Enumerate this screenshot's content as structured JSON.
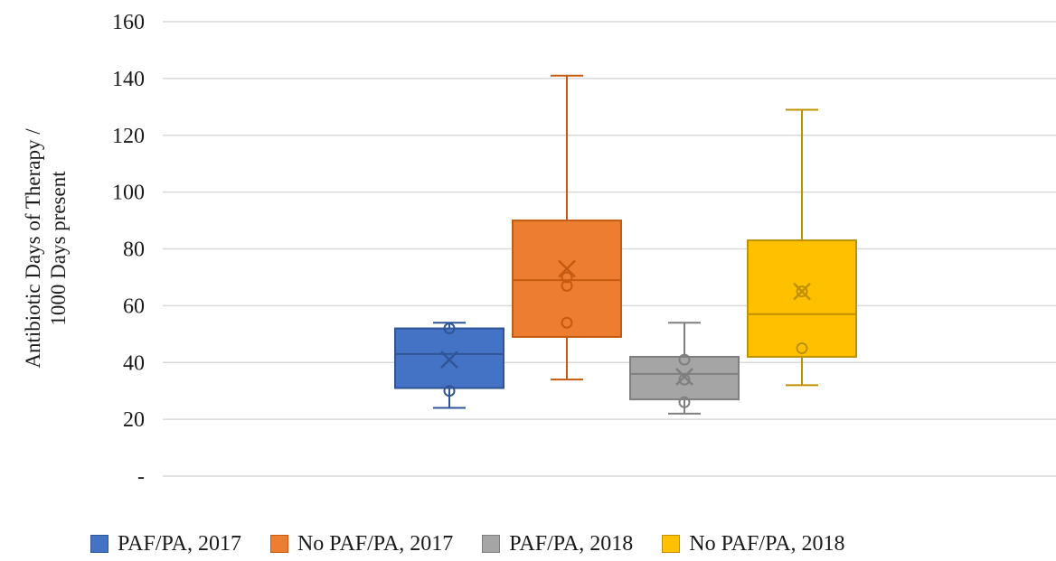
{
  "chart_data": {
    "type": "box",
    "ylabel_lines": [
      "Antibiotic Days of Therapy /",
      "1000 Days present"
    ],
    "xlabel": "",
    "ylim": [
      0,
      160
    ],
    "yticks": [
      0,
      20,
      40,
      60,
      80,
      100,
      120,
      140,
      160
    ],
    "ytick_labels": [
      "-",
      "20",
      "40",
      "60",
      "80",
      "100",
      "120",
      "140",
      "160"
    ],
    "grid": "horizontal",
    "legend_position": "bottom",
    "series": [
      {
        "name": "PAF/PA, 2017",
        "color": "#4472C4",
        "stroke": "#2F5597",
        "min": 24,
        "q1": 31,
        "median": 43,
        "q3": 52,
        "max": 54,
        "mean": 41,
        "points": [
          30,
          52
        ]
      },
      {
        "name": "No PAF/PA, 2017",
        "color": "#ED7D31",
        "stroke": "#C55A11",
        "min": 34,
        "q1": 49,
        "median": 69,
        "q3": 90,
        "max": 141,
        "mean": 73,
        "points": [
          54,
          67,
          70
        ]
      },
      {
        "name": "PAF/PA, 2018",
        "color": "#A5A5A5",
        "stroke": "#7F7F7F",
        "min": 22,
        "q1": 27,
        "median": 36,
        "q3": 42,
        "max": 54,
        "mean": 35,
        "points": [
          26,
          34,
          41
        ]
      },
      {
        "name": "No PAF/PA, 2018",
        "color": "#FFC000",
        "stroke": "#BF9000",
        "min": 32,
        "q1": 42,
        "median": 57,
        "q3": 83,
        "max": 129,
        "mean": 65,
        "points": [
          45,
          65
        ]
      }
    ]
  }
}
